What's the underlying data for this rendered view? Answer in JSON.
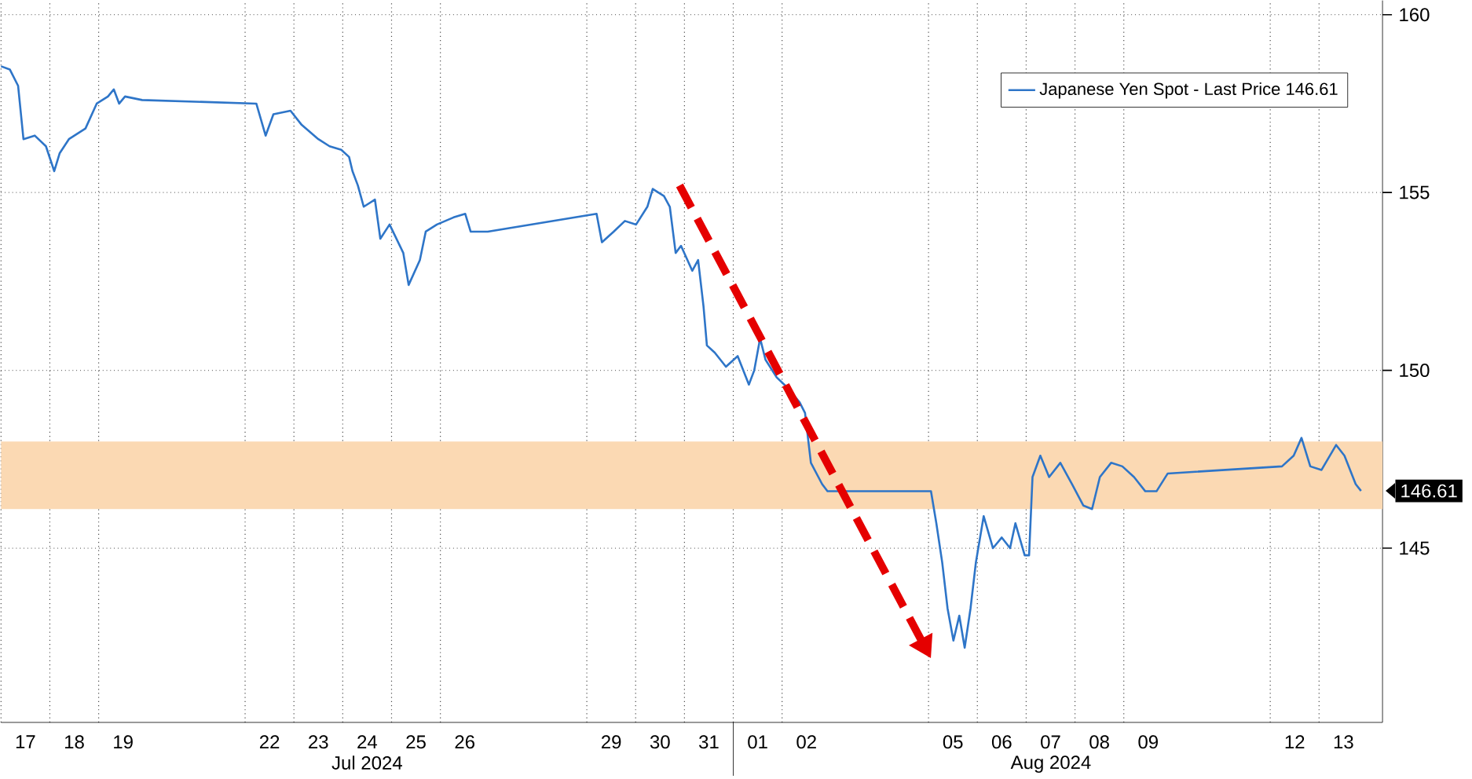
{
  "chart_data": {
    "type": "line",
    "x": [
      "2024-07-17T00:00",
      "2024-07-17T04:19",
      "2024-07-17T08:24",
      "2024-07-17T11:02",
      "2024-07-17T16:34",
      "2024-07-17T22:05",
      "2024-07-18T02:10",
      "2024-07-18T04:48",
      "2024-07-18T09:22",
      "2024-07-18T17:31",
      "2024-07-18T23:02",
      "2024-07-19T04:34",
      "2024-07-19T07:26",
      "2024-07-19T10:05",
      "2024-07-19T12:58",
      "2024-07-19T21:22",
      "2024-07-22T05:31",
      "2024-07-22T10:05",
      "2024-07-22T13:55",
      "2024-07-22T22:19",
      "2024-07-23T03:50",
      "2024-07-23T12:00",
      "2024-07-23T17:31",
      "2024-07-23T23:17",
      "2024-07-24T03:07",
      "2024-07-24T04:48",
      "2024-07-24T07:26",
      "2024-07-24T10:19",
      "2024-07-24T15:50",
      "2024-07-24T18:29",
      "2024-07-24T23:02",
      "2024-07-25T05:46",
      "2024-07-25T08:24",
      "2024-07-25T13:55",
      "2024-07-25T16:48",
      "2024-07-25T22:19",
      "2024-07-26T06:29",
      "2024-07-26T12:14",
      "2024-07-26T14:53",
      "2024-07-26T23:17",
      "2024-07-29T04:48",
      "2024-07-29T07:26",
      "2024-07-29T13:12",
      "2024-07-29T18:43",
      "2024-07-30T00:14",
      "2024-07-30T05:46",
      "2024-07-30T08:24",
      "2024-07-30T13:55",
      "2024-07-30T16:48",
      "2024-07-30T19:41",
      "2024-07-30T22:19",
      "2024-07-31T03:50",
      "2024-07-31T06:43",
      "2024-07-31T09:22",
      "2024-07-31T11:02",
      "2024-07-31T14:53",
      "2024-07-31T20:24",
      "2024-08-01T02:10",
      "2024-08-01T07:41",
      "2024-08-01T10:19",
      "2024-08-01T13:12",
      "2024-08-01T15:50",
      "2024-08-01T21:22",
      "2024-08-02T02:53",
      "2024-08-02T08:38",
      "2024-08-02T11:17",
      "2024-08-02T14:10",
      "2024-08-02T19:41",
      "2024-08-02T22:19",
      "2024-08-05T01:12",
      "2024-08-05T03:50",
      "2024-08-05T06:43",
      "2024-08-05T09:22",
      "2024-08-05T12:14",
      "2024-08-05T15:07",
      "2024-08-05T17:46",
      "2024-08-05T20:38",
      "2024-08-05T23:17",
      "2024-08-06T03:07",
      "2024-08-06T07:41",
      "2024-08-06T12:00",
      "2024-08-06T16:05",
      "2024-08-06T18:43",
      "2024-08-06T23:17",
      "2024-08-07T01:26",
      "2024-08-07T03:07",
      "2024-08-07T06:58",
      "2024-08-07T11:17",
      "2024-08-07T16:48",
      "2024-08-07T22:34",
      "2024-08-08T04:05",
      "2024-08-08T08:24",
      "2024-08-08T12:14",
      "2024-08-08T17:46",
      "2024-08-08T23:17",
      "2024-08-09T05:02",
      "2024-08-09T10:34",
      "2024-08-09T16:05",
      "2024-08-09T21:36",
      "2024-08-12T05:46",
      "2024-08-12T11:31",
      "2024-08-12T15:22",
      "2024-08-12T19:41",
      "2024-08-13T01:12",
      "2024-08-13T08:24",
      "2024-08-13T12:29",
      "2024-08-13T18:00",
      "2024-08-13T20:38"
    ],
    "series": [
      {
        "name": "Japanese Yen Spot - Last Price 146.61",
        "color": "#2e75c8",
        "values": [
          158.55,
          158.46,
          158.0,
          156.5,
          156.6,
          156.3,
          155.6,
          156.1,
          156.5,
          156.8,
          157.5,
          157.7,
          157.9,
          157.5,
          157.7,
          157.6,
          157.5,
          156.6,
          157.2,
          157.3,
          156.9,
          156.5,
          156.3,
          156.2,
          156.0,
          155.6,
          155.2,
          154.6,
          154.8,
          153.7,
          154.1,
          153.3,
          152.4,
          153.1,
          153.9,
          154.1,
          154.3,
          154.4,
          153.9,
          153.9,
          154.4,
          153.6,
          153.9,
          154.2,
          154.1,
          154.6,
          155.1,
          154.9,
          154.6,
          153.3,
          153.5,
          152.8,
          153.1,
          151.8,
          150.7,
          150.5,
          150.1,
          150.4,
          149.6,
          150.0,
          150.9,
          150.3,
          149.8,
          149.5,
          149.1,
          148.8,
          147.4,
          146.8,
          146.6,
          146.6,
          145.7,
          144.6,
          143.3,
          142.4,
          143.1,
          142.2,
          143.3,
          144.6,
          145.9,
          145.0,
          145.3,
          145.0,
          145.7,
          144.8,
          144.8,
          147.0,
          147.6,
          147.0,
          147.4,
          146.8,
          146.2,
          146.1,
          147.0,
          147.4,
          147.3,
          147.0,
          146.6,
          146.6,
          147.1,
          147.3,
          147.6,
          148.1,
          147.3,
          147.2,
          147.9,
          147.6,
          146.8,
          146.61
        ]
      }
    ],
    "xlim": [
      "2024-07-17T00:00",
      "2024-08-14T07:12"
    ],
    "xticks": [
      {
        "value": "2024-07-17T12:00",
        "label": "17"
      },
      {
        "value": "2024-07-18T12:00",
        "label": "18"
      },
      {
        "value": "2024-07-19T12:00",
        "label": "19"
      },
      {
        "value": "2024-07-22T12:00",
        "label": "22"
      },
      {
        "value": "2024-07-23T12:00",
        "label": "23"
      },
      {
        "value": "2024-07-24T12:00",
        "label": "24"
      },
      {
        "value": "2024-07-25T12:00",
        "label": "25"
      },
      {
        "value": "2024-07-26T12:00",
        "label": "26"
      },
      {
        "value": "2024-07-29T12:00",
        "label": "29"
      },
      {
        "value": "2024-07-30T12:00",
        "label": "30"
      },
      {
        "value": "2024-07-31T12:00",
        "label": "31"
      },
      {
        "value": "2024-08-01T12:00",
        "label": "01"
      },
      {
        "value": "2024-08-02T12:00",
        "label": "02"
      },
      {
        "value": "2024-08-05T12:00",
        "label": "05"
      },
      {
        "value": "2024-08-06T12:00",
        "label": "06"
      },
      {
        "value": "2024-08-07T12:00",
        "label": "07"
      },
      {
        "value": "2024-08-08T12:00",
        "label": "08"
      },
      {
        "value": "2024-08-09T12:00",
        "label": "09"
      },
      {
        "value": "2024-08-12T12:00",
        "label": "12"
      },
      {
        "value": "2024-08-13T12:00",
        "label": "13"
      }
    ],
    "ylim": [
      140.1,
      160.4
    ],
    "yticks": [
      145,
      150,
      155,
      160
    ],
    "bands": [
      {
        "axis": "y",
        "from": 146.1,
        "to": 148.0,
        "color": "#fbd9b3"
      }
    ],
    "annotations": [
      "Jul 2024",
      "Aug 2024",
      "146.61"
    ],
    "grid": true,
    "legend": "top right",
    "marker": "none",
    "line_style": "solid"
  }
}
